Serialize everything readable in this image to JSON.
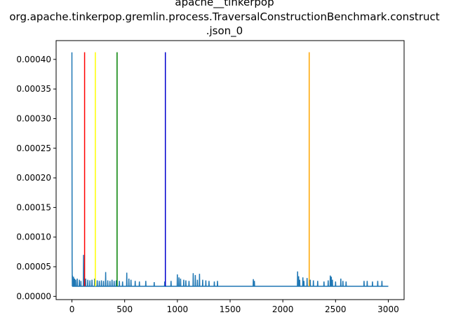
{
  "chart_data": {
    "type": "line",
    "title_lines": [
      "apache__tinkerpop",
      "org.apache.tinkerpop.gremlin.process.TraversalConstructionBenchmark.construct",
      ".json_0"
    ],
    "xlabel": "",
    "ylabel": "",
    "xlim": [
      -150,
      3150
    ],
    "ylim": [
      -5.5e-06,
      0.0004317
    ],
    "x_ticks": [
      0,
      500,
      1000,
      1500,
      2000,
      2500,
      3000
    ],
    "x_tick_labels": [
      "0",
      "500",
      "1000",
      "1500",
      "2000",
      "2500",
      "3000"
    ],
    "y_ticks": [
      0,
      5e-05,
      0.0001,
      0.00015,
      0.0002,
      0.00025,
      0.0003,
      0.00035,
      0.0004
    ],
    "y_tick_labels": [
      "0.00000",
      "0.00005",
      "0.00010",
      "0.00015",
      "0.00020",
      "0.00025",
      "0.00030",
      "0.00035",
      "0.00040"
    ],
    "grid": false,
    "series": [
      {
        "color": "#1f77b4",
        "x_max": 3000,
        "baseline": 1.7e-05,
        "spikes": [
          [
            0,
            0.000412
          ],
          [
            2,
            6e-05
          ],
          [
            5,
            3.5e-05
          ],
          [
            15,
            3.3e-05
          ],
          [
            25,
            3e-05
          ],
          [
            35,
            2.8e-05
          ],
          [
            50,
            3e-05
          ],
          [
            70,
            2.8e-05
          ],
          [
            85,
            2.6e-05
          ],
          [
            110,
            7e-05
          ],
          [
            130,
            3e-05
          ],
          [
            150,
            2.8e-05
          ],
          [
            170,
            2.7e-05
          ],
          [
            190,
            2.8e-05
          ],
          [
            215,
            3e-05
          ],
          [
            240,
            2.7e-05
          ],
          [
            260,
            2.6e-05
          ],
          [
            280,
            2.7e-05
          ],
          [
            300,
            2.6e-05
          ],
          [
            320,
            4.1e-05
          ],
          [
            340,
            2.7e-05
          ],
          [
            360,
            2.6e-05
          ],
          [
            380,
            2.8e-05
          ],
          [
            400,
            2.6e-05
          ],
          [
            420,
            2.7e-05
          ],
          [
            450,
            2.6e-05
          ],
          [
            480,
            2.5e-05
          ],
          [
            520,
            4e-05
          ],
          [
            540,
            3e-05
          ],
          [
            560,
            2.8e-05
          ],
          [
            600,
            2.6e-05
          ],
          [
            640,
            2.5e-05
          ],
          [
            700,
            2.6e-05
          ],
          [
            780,
            2.4e-05
          ],
          [
            880,
            2.5e-05
          ],
          [
            940,
            2.6e-05
          ],
          [
            1000,
            3.7e-05
          ],
          [
            1015,
            3.2e-05
          ],
          [
            1030,
            3e-05
          ],
          [
            1060,
            2.8e-05
          ],
          [
            1080,
            2.7e-05
          ],
          [
            1110,
            2.6e-05
          ],
          [
            1150,
            3.9e-05
          ],
          [
            1170,
            3.6e-05
          ],
          [
            1190,
            2.8e-05
          ],
          [
            1210,
            3.8e-05
          ],
          [
            1240,
            2.8e-05
          ],
          [
            1270,
            2.7e-05
          ],
          [
            1300,
            2.6e-05
          ],
          [
            1350,
            2.5e-05
          ],
          [
            1380,
            2.6e-05
          ],
          [
            1720,
            2.9e-05
          ],
          [
            1730,
            2.6e-05
          ],
          [
            2140,
            4.2e-05
          ],
          [
            2150,
            3.4e-05
          ],
          [
            2160,
            2.8e-05
          ],
          [
            2190,
            3.2e-05
          ],
          [
            2200,
            2.6e-05
          ],
          [
            2230,
            3.1e-05
          ],
          [
            2260,
            2.8e-05
          ],
          [
            2290,
            2.7e-05
          ],
          [
            2330,
            2.6e-05
          ],
          [
            2390,
            2.5e-05
          ],
          [
            2430,
            2.7e-05
          ],
          [
            2450,
            3.5e-05
          ],
          [
            2460,
            3.3e-05
          ],
          [
            2470,
            2.8e-05
          ],
          [
            2500,
            2.5e-05
          ],
          [
            2550,
            3e-05
          ],
          [
            2570,
            2.6e-05
          ],
          [
            2600,
            2.5e-05
          ],
          [
            2770,
            2.6e-05
          ],
          [
            2800,
            2.6e-05
          ],
          [
            2850,
            2.5e-05
          ],
          [
            2900,
            2.6e-05
          ],
          [
            2940,
            2.6e-05
          ]
        ]
      }
    ],
    "vertical_lines": [
      {
        "x": 120,
        "color": "#ff0000"
      },
      {
        "x": 222,
        "color": "#ffff00"
      },
      {
        "x": 428,
        "color": "#008000"
      },
      {
        "x": 886,
        "color": "#0000cd"
      },
      {
        "x": 2250,
        "color": "#ffa500"
      }
    ],
    "vertical_line_ymax": 0.000412
  }
}
